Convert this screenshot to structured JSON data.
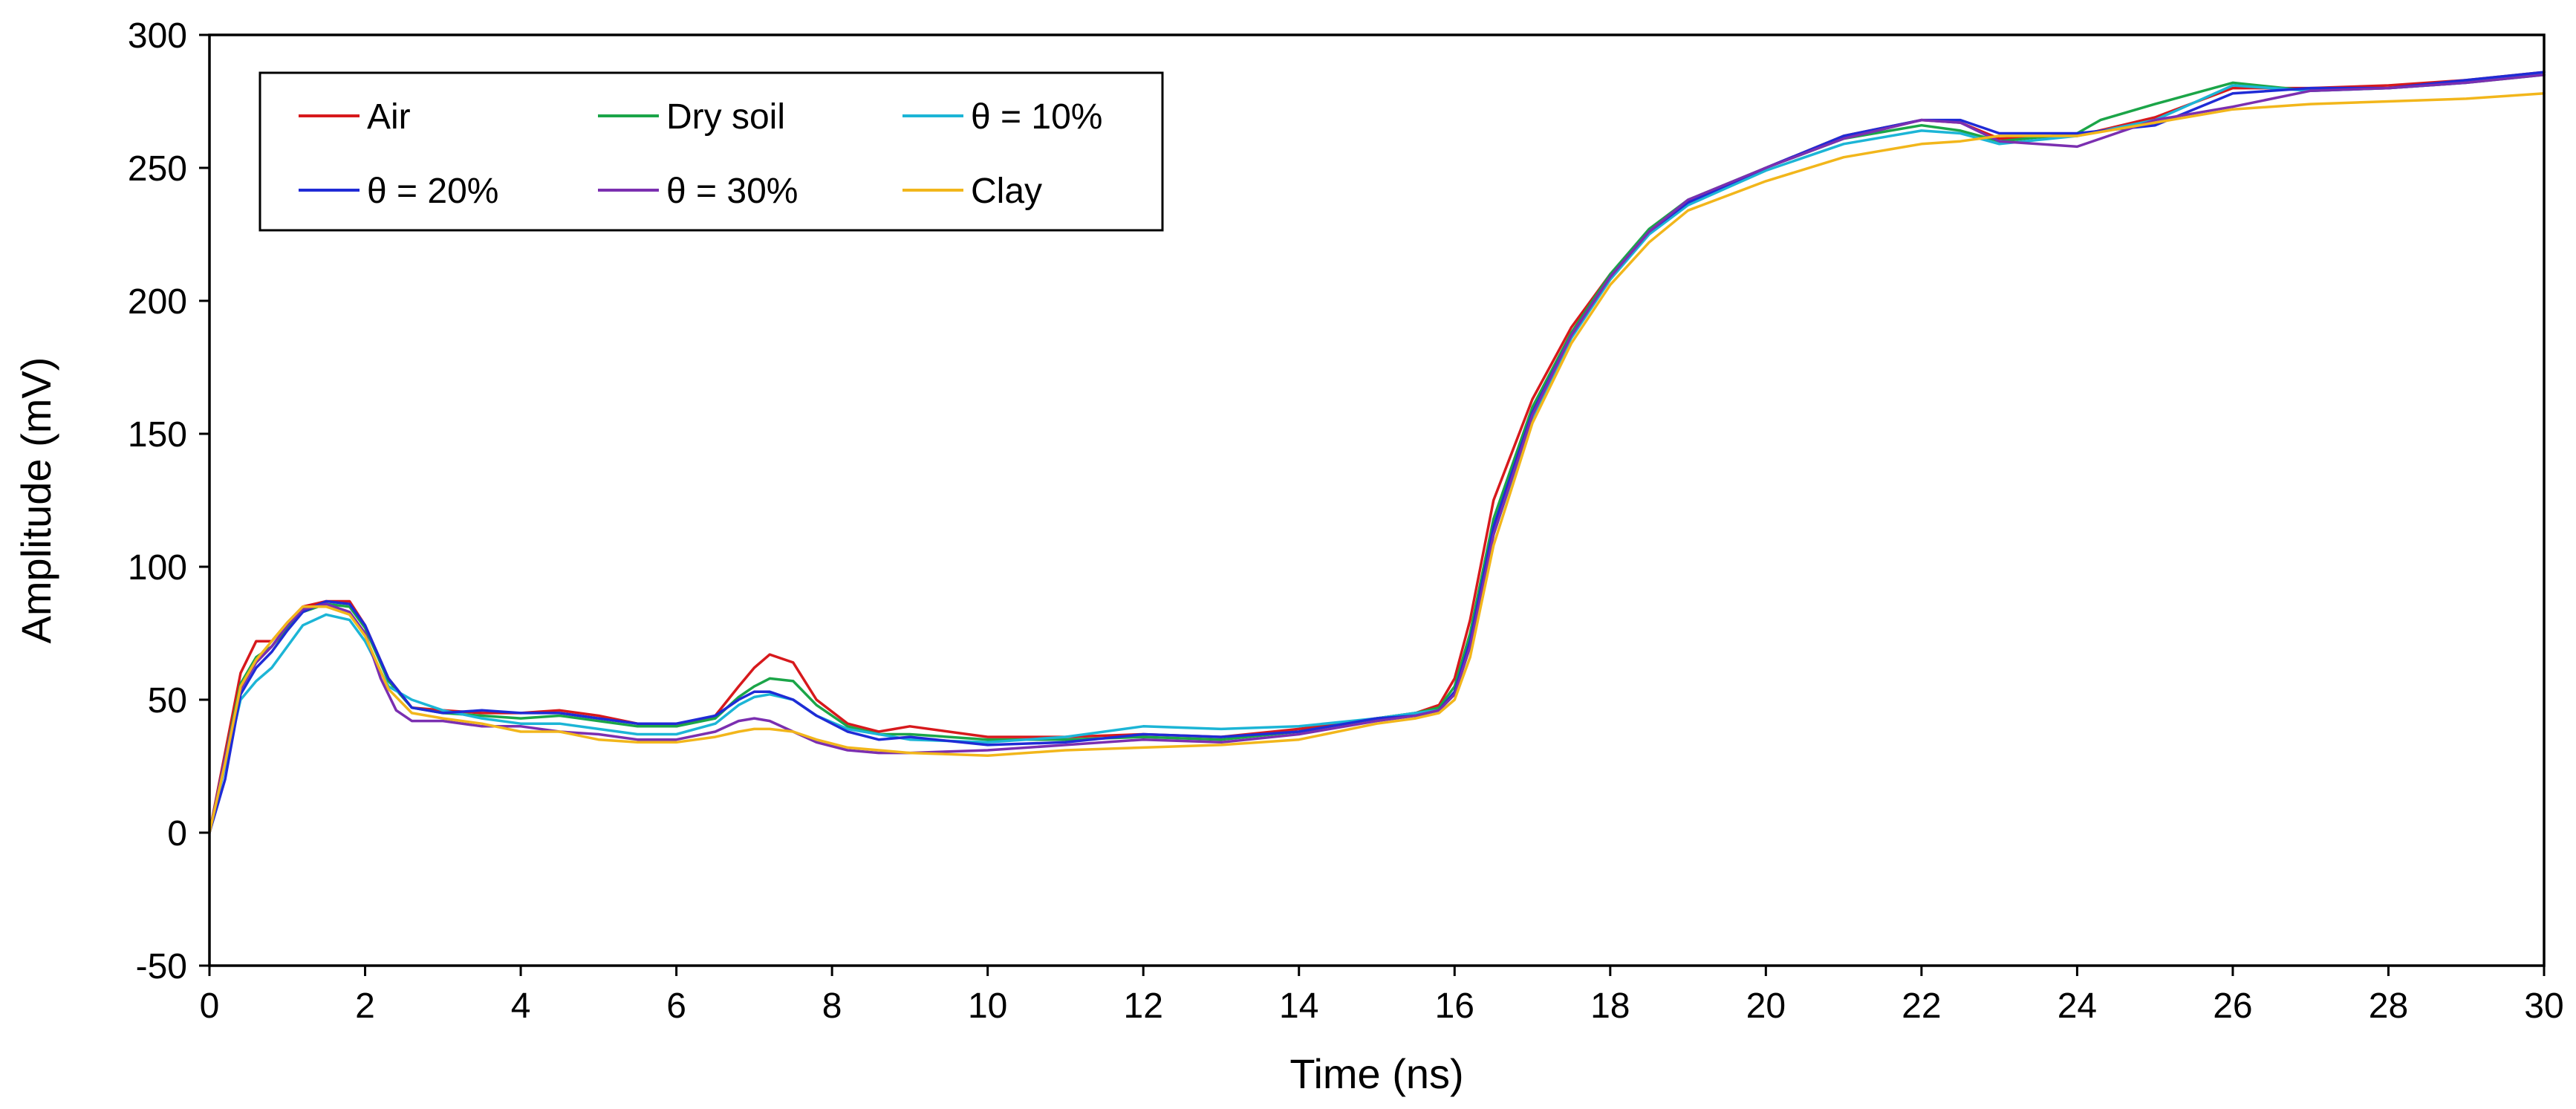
{
  "chart_data": {
    "type": "line",
    "title": "",
    "xlabel": "Time (ns)",
    "ylabel": "Amplitude (mV)",
    "xlim": [
      0,
      30
    ],
    "ylim": [
      -50,
      300
    ],
    "xticks": [
      0,
      2,
      4,
      6,
      8,
      10,
      12,
      14,
      16,
      18,
      20,
      22,
      24,
      26,
      28,
      30
    ],
    "yticks": [
      -50,
      0,
      50,
      100,
      150,
      200,
      250,
      300
    ],
    "grid": false,
    "legend_position": "top-left",
    "series": [
      {
        "name": "Air",
        "color": "#D7191C",
        "x": [
          0,
          0.2,
          0.4,
          0.6,
          0.8,
          1.0,
          1.2,
          1.5,
          1.8,
          2.0,
          2.3,
          2.6,
          3.0,
          3.5,
          4.0,
          4.5,
          5.0,
          5.5,
          6.0,
          6.5,
          6.8,
          7.0,
          7.2,
          7.5,
          7.8,
          8.2,
          8.6,
          9.0,
          10.0,
          11.0,
          12.0,
          13.0,
          14.0,
          15.0,
          15.5,
          15.8,
          16.0,
          16.2,
          16.5,
          17.0,
          17.5,
          18.0,
          18.5,
          19.0,
          20.0,
          21.0,
          22.0,
          22.5,
          23.0,
          24.0,
          25.0,
          26.0,
          27.0,
          28.0,
          29.0,
          30.0
        ],
        "y": [
          0,
          30,
          60,
          72,
          72,
          79,
          85,
          87,
          87,
          78,
          58,
          47,
          46,
          45,
          45,
          46,
          44,
          41,
          40,
          44,
          55,
          62,
          67,
          64,
          50,
          41,
          38,
          40,
          36,
          36,
          37,
          36,
          39,
          43,
          45,
          48,
          58,
          80,
          125,
          163,
          190,
          210,
          226,
          237,
          250,
          262,
          268,
          267,
          261,
          262,
          269,
          280,
          280,
          281,
          283,
          286
        ]
      },
      {
        "name": "Dry soil",
        "color": "#1BA548",
        "x": [
          0,
          0.2,
          0.4,
          0.6,
          0.8,
          1.0,
          1.2,
          1.5,
          1.8,
          2.0,
          2.3,
          2.6,
          3.0,
          3.5,
          4.0,
          4.5,
          5.0,
          5.5,
          6.0,
          6.5,
          6.8,
          7.0,
          7.2,
          7.5,
          7.8,
          8.2,
          8.6,
          9.0,
          10.0,
          11.0,
          12.0,
          13.0,
          14.0,
          15.0,
          15.5,
          15.8,
          16.0,
          16.2,
          16.5,
          17.0,
          17.5,
          18.0,
          18.5,
          19.0,
          20.0,
          21.0,
          22.0,
          22.5,
          23.0,
          24.0,
          24.3,
          25.0,
          26.0,
          27.0,
          28.0,
          29.0,
          30.0
        ],
        "y": [
          0,
          28,
          56,
          66,
          70,
          77,
          83,
          86,
          85,
          77,
          57,
          47,
          45,
          44,
          43,
          44,
          42,
          40,
          40,
          43,
          51,
          55,
          58,
          57,
          48,
          40,
          37,
          37,
          35,
          35,
          36,
          35,
          38,
          43,
          45,
          47,
          55,
          75,
          118,
          160,
          188,
          210,
          227,
          238,
          250,
          261,
          266,
          264,
          260,
          263,
          268,
          274,
          282,
          279,
          280,
          282,
          285
        ]
      },
      {
        "name": "θ = 10%",
        "color": "#1CB5D6",
        "x": [
          0,
          0.2,
          0.4,
          0.6,
          0.8,
          1.0,
          1.2,
          1.5,
          1.8,
          2.0,
          2.3,
          2.6,
          3.0,
          3.5,
          4.0,
          4.5,
          5.0,
          5.5,
          6.0,
          6.5,
          6.8,
          7.0,
          7.2,
          7.5,
          7.8,
          8.2,
          8.6,
          9.0,
          10.0,
          11.0,
          12.0,
          13.0,
          14.0,
          15.0,
          15.5,
          15.8,
          16.0,
          16.2,
          16.5,
          17.0,
          17.5,
          18.0,
          18.5,
          19.0,
          20.0,
          21.0,
          22.0,
          22.5,
          23.0,
          24.0,
          25.0,
          26.0,
          27.0,
          28.0,
          29.0,
          30.0
        ],
        "y": [
          0,
          25,
          50,
          57,
          62,
          70,
          78,
          82,
          80,
          72,
          55,
          50,
          46,
          43,
          41,
          41,
          39,
          37,
          37,
          41,
          48,
          51,
          52,
          50,
          44,
          39,
          37,
          35,
          34,
          36,
          40,
          39,
          40,
          43,
          45,
          46,
          52,
          70,
          112,
          156,
          186,
          208,
          225,
          236,
          249,
          259,
          264,
          263,
          259,
          262,
          268,
          281,
          279,
          280,
          282,
          286
        ]
      },
      {
        "name": "θ = 20%",
        "color": "#1F2BD6",
        "x": [
          0,
          0.2,
          0.4,
          0.6,
          0.8,
          1.0,
          1.2,
          1.5,
          1.8,
          2.0,
          2.3,
          2.6,
          3.0,
          3.5,
          4.0,
          4.5,
          5.0,
          5.5,
          6.0,
          6.5,
          6.8,
          7.0,
          7.2,
          7.5,
          7.8,
          8.2,
          8.6,
          9.0,
          10.0,
          11.0,
          12.0,
          13.0,
          14.0,
          15.0,
          15.5,
          15.8,
          16.0,
          16.2,
          16.5,
          17.0,
          17.5,
          18.0,
          18.5,
          19.0,
          20.0,
          21.0,
          22.0,
          22.5,
          23.0,
          24.0,
          25.0,
          26.0,
          27.0,
          28.0,
          29.0,
          30.0
        ],
        "y": [
          0,
          20,
          52,
          62,
          68,
          76,
          83,
          87,
          86,
          78,
          58,
          47,
          45,
          46,
          45,
          45,
          43,
          41,
          41,
          44,
          50,
          53,
          53,
          50,
          44,
          38,
          35,
          36,
          33,
          34,
          37,
          36,
          38,
          43,
          44,
          46,
          53,
          72,
          115,
          158,
          187,
          209,
          226,
          237,
          250,
          262,
          268,
          268,
          263,
          263,
          266,
          278,
          280,
          280,
          283,
          286
        ]
      },
      {
        "name": "θ = 30%",
        "color": "#7B2FB0",
        "x": [
          0,
          0.2,
          0.4,
          0.6,
          0.8,
          1.0,
          1.2,
          1.5,
          1.8,
          2.0,
          2.2,
          2.4,
          2.6,
          3.0,
          3.5,
          4.0,
          4.5,
          5.0,
          5.5,
          6.0,
          6.5,
          6.8,
          7.0,
          7.2,
          7.5,
          7.8,
          8.2,
          8.6,
          9.0,
          10.0,
          11.0,
          12.0,
          13.0,
          14.0,
          15.0,
          15.5,
          15.8,
          16.0,
          16.2,
          16.5,
          17.0,
          17.5,
          18.0,
          18.5,
          19.0,
          20.0,
          21.0,
          22.0,
          22.5,
          23.0,
          24.0,
          25.0,
          26.0,
          27.0,
          28.0,
          29.0,
          30.0
        ],
        "y": [
          0,
          28,
          54,
          64,
          70,
          78,
          84,
          86,
          83,
          75,
          58,
          46,
          42,
          42,
          40,
          40,
          38,
          37,
          35,
          35,
          38,
          42,
          43,
          42,
          38,
          34,
          31,
          30,
          30,
          31,
          33,
          35,
          34,
          37,
          42,
          44,
          46,
          52,
          70,
          112,
          157,
          187,
          209,
          226,
          238,
          250,
          261,
          268,
          267,
          260,
          258,
          268,
          273,
          279,
          280,
          282,
          285
        ]
      },
      {
        "name": "Clay",
        "color": "#F2B61B",
        "x": [
          0,
          0.2,
          0.4,
          0.6,
          0.8,
          1.0,
          1.2,
          1.5,
          1.8,
          2.0,
          2.3,
          2.6,
          3.0,
          3.5,
          4.0,
          4.5,
          5.0,
          5.5,
          6.0,
          6.5,
          6.8,
          7.0,
          7.2,
          7.5,
          7.8,
          8.2,
          8.6,
          9.0,
          10.0,
          11.0,
          12.0,
          13.0,
          14.0,
          15.0,
          15.5,
          15.8,
          16.0,
          16.2,
          16.5,
          17.0,
          17.5,
          18.0,
          18.5,
          19.0,
          20.0,
          21.0,
          22.0,
          22.5,
          23.0,
          24.0,
          25.0,
          26.0,
          27.0,
          28.0,
          29.0,
          30.0
        ],
        "y": [
          0,
          26,
          55,
          65,
          72,
          79,
          85,
          85,
          82,
          74,
          54,
          45,
          43,
          41,
          38,
          38,
          35,
          34,
          34,
          36,
          38,
          39,
          39,
          38,
          35,
          32,
          31,
          30,
          29,
          31,
          32,
          33,
          35,
          41,
          43,
          45,
          50,
          66,
          108,
          154,
          184,
          206,
          222,
          234,
          245,
          254,
          259,
          260,
          262,
          262,
          267,
          272,
          274,
          275,
          276,
          278
        ]
      }
    ]
  }
}
